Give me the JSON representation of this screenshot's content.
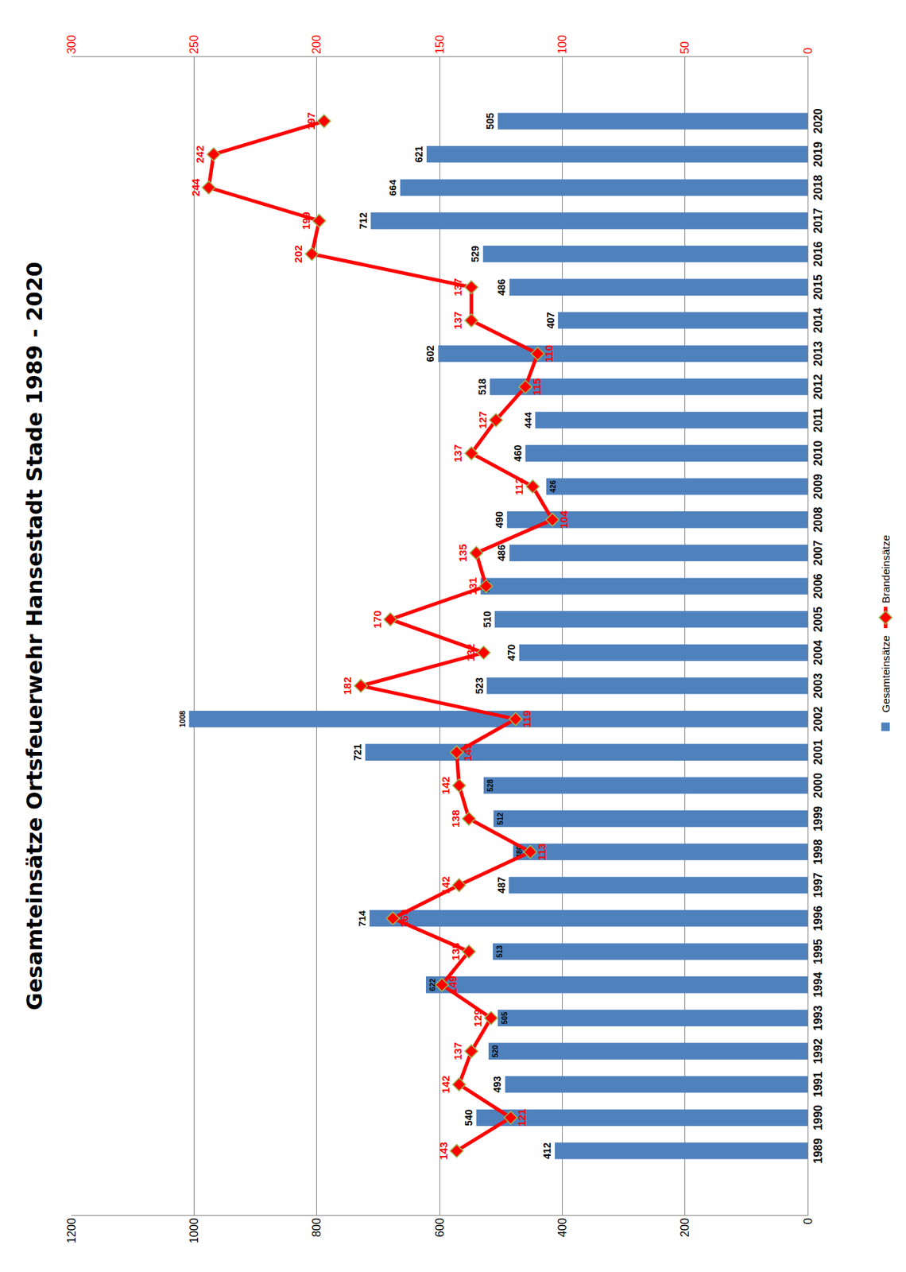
{
  "chart_data": {
    "type": "bar",
    "title": "Gesamteinsätze Ortsfeuerwehr Hansestadt Stade 1989 - 2020",
    "categories": [
      "1989",
      "1990",
      "1991",
      "1992",
      "1993",
      "1994",
      "1995",
      "1996",
      "1997",
      "1998",
      "1999",
      "2000",
      "2001",
      "2002",
      "2003",
      "2004",
      "2005",
      "2006",
      "2007",
      "2008",
      "2009",
      "2010",
      "2011",
      "2012",
      "2013",
      "2014",
      "2015",
      "2016",
      "2017",
      "2018",
      "2019",
      "2020"
    ],
    "series": [
      {
        "name": "Gesamteinsätze",
        "type": "bar",
        "color": "#4f81bd",
        "values": [
          412,
          540,
          493,
          520,
          505,
          622,
          513,
          714,
          487,
          480,
          512,
          528,
          721,
          1008,
          523,
          470,
          510,
          533,
          486,
          490,
          426,
          460,
          444,
          518,
          602,
          407,
          486,
          529,
          712,
          664,
          621,
          505
        ]
      },
      {
        "name": "Brandeinsätze",
        "type": "line",
        "color": "#ff0000",
        "marker": "diamond",
        "axis": "y2",
        "values": [
          143,
          121,
          142,
          137,
          129,
          149,
          138,
          169,
          142,
          113,
          138,
          142,
          143,
          119,
          182,
          132,
          170,
          131,
          135,
          104,
          112,
          137,
          127,
          115,
          110,
          137,
          137,
          202,
          199,
          244,
          242,
          197
        ]
      }
    ],
    "ylim": [
      0,
      1200
    ],
    "yticks": [
      0,
      200,
      400,
      600,
      800,
      1000,
      1200
    ],
    "y2lim": [
      0,
      300
    ],
    "y2ticks": [
      0,
      50,
      100,
      150,
      200,
      250,
      300
    ],
    "grid": true,
    "legend": "bottom",
    "data_labels": true
  }
}
